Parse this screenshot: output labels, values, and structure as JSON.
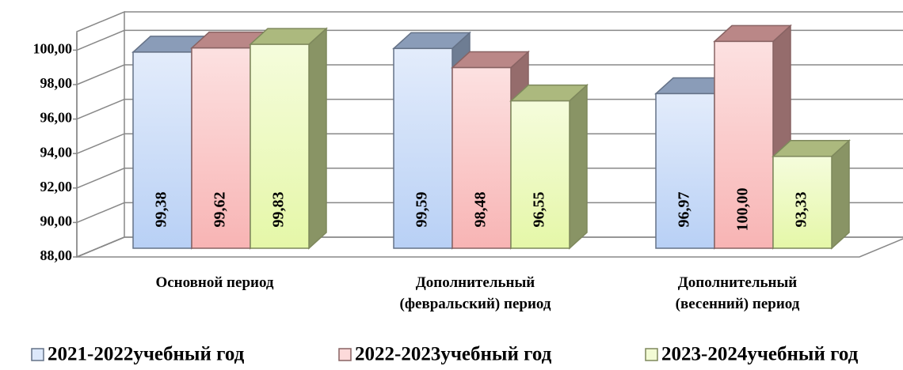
{
  "chart_data": {
    "type": "bar3d",
    "categories": [
      "Основной период",
      "Дополнительный (февральский) период",
      "Дополнительный (весенний) период"
    ],
    "series": [
      {
        "name": "2021-2022учебный год",
        "color": "#b8d0f5",
        "values": [
          99.38,
          99.59,
          96.97
        ],
        "value_labels": [
          "99,38",
          "99,59",
          "96,97"
        ]
      },
      {
        "name": "2022-2023учебный год",
        "color": "#f8b4b4",
        "values": [
          99.62,
          98.48,
          100.0
        ],
        "value_labels": [
          "99,62",
          "98,48",
          "100,00"
        ]
      },
      {
        "name": "2023-2024учебный год",
        "color": "#e5f7a8",
        "values": [
          99.83,
          96.55,
          93.33
        ],
        "value_labels": [
          "99,83",
          "96,55",
          "93,33"
        ]
      }
    ],
    "ylim": [
      88,
      101
    ],
    "yticks": [
      {
        "value": 88,
        "label": "88,00"
      },
      {
        "value": 90,
        "label": "90,00"
      },
      {
        "value": 92,
        "label": "92,00"
      },
      {
        "value": 94,
        "label": "94,00"
      },
      {
        "value": 96,
        "label": "96,00"
      },
      {
        "value": 98,
        "label": "98,00"
      },
      {
        "value": 100,
        "label": "100,00"
      }
    ],
    "grid": true,
    "legend": "bottom"
  }
}
